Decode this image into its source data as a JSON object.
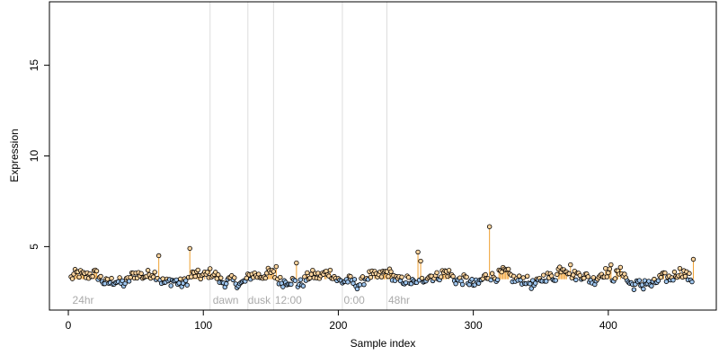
{
  "chart_data": {
    "type": "scatter",
    "xlabel": "Sample index",
    "ylabel": "Expression",
    "xlim": [
      -14,
      480
    ],
    "ylim": [
      1.5,
      18.5
    ],
    "x_ticks": [
      0,
      100,
      200,
      300,
      400
    ],
    "y_ticks": [
      5,
      10,
      15
    ],
    "x_tick_labels": [
      "0",
      "100",
      "200",
      "300",
      "400"
    ],
    "y_tick_labels": [
      "5",
      "10",
      "15"
    ],
    "baseline": 3.2,
    "colors": {
      "above": "#ffd6a0",
      "below": "#9ec5ee",
      "stem": "#f0a030",
      "vline": "#dddddd",
      "annotation": "#aaaaaa"
    },
    "markers": [
      {
        "x": 105
      },
      {
        "x": 133
      },
      {
        "x": 152
      },
      {
        "x": 203
      },
      {
        "x": 236
      }
    ],
    "annotations": [
      {
        "x": 3,
        "text": "24hr"
      },
      {
        "x": 107,
        "text": "dawn"
      },
      {
        "x": 133,
        "text": "dusk"
      },
      {
        "x": 153,
        "text": "12:00"
      },
      {
        "x": 204,
        "text": "0:00"
      },
      {
        "x": 237,
        "text": "48hr"
      }
    ],
    "spikes": [
      {
        "x": 65,
        "y": 4.5
      },
      {
        "x": 88,
        "y": 4.9
      },
      {
        "x": 152,
        "y": 3.9
      },
      {
        "x": 167,
        "y": 4.1
      },
      {
        "x": 257,
        "y": 4.7
      },
      {
        "x": 259,
        "y": 4.2
      },
      {
        "x": 310,
        "y": 6.1
      },
      {
        "x": 370,
        "y": 4.0
      },
      {
        "x": 400,
        "y": 4.0
      },
      {
        "x": 461,
        "y": 4.3
      }
    ],
    "n_points": 462
  }
}
